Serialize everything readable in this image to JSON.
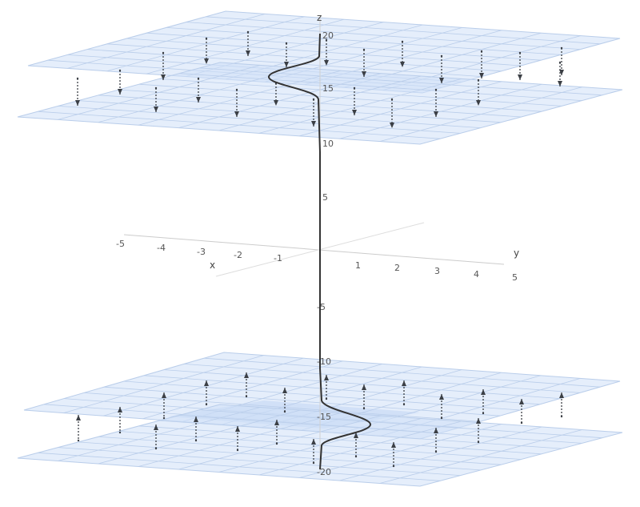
{
  "axes": {
    "x": {
      "name": "x",
      "ticks": [
        "-5",
        "-4",
        "-3",
        "-2",
        "-1"
      ]
    },
    "y": {
      "name": "y",
      "ticks": [
        "1",
        "2",
        "3",
        "4",
        "5"
      ]
    },
    "z": {
      "name": "z",
      "ticks": [
        "20",
        "15",
        "10",
        "5",
        "-5",
        "-10",
        "-15",
        "-20"
      ]
    }
  },
  "colors": {
    "plane_fill": "#cfe0f7",
    "plane_grid": "#b9cdea",
    "curve": "#333333",
    "arrow": "#3b3f45",
    "axis": "#cccccc",
    "shadow": "#b5c9ee"
  }
}
